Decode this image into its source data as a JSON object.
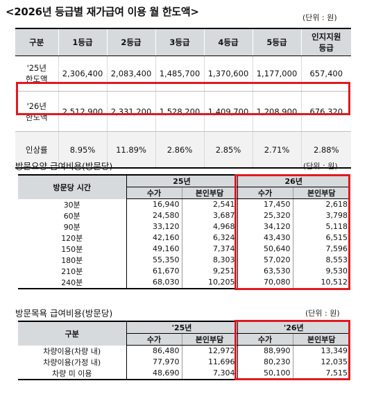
{
  "title": "<2026년 등급별 재가급여 이용 월 한도액>",
  "unit_label": "(단위 : 원)",
  "grade_table": {
    "headers": [
      "구분",
      "1등급",
      "2등급",
      "3등급",
      "4등급",
      "5등급",
      "인지지원",
      "등급"
    ],
    "rows": [
      {
        "label_l1": "'25년",
        "label_l2": "한도액",
        "values": [
          "2,306,400",
          "2,083,400",
          "1,485,700",
          "1,370,600",
          "1,177,000",
          "657,400"
        ]
      },
      {
        "label_l1": "'26년",
        "label_l2": "한도액",
        "values": [
          "2,512,900",
          "2,331,200",
          "1,528,200",
          "1,409,700",
          "1,208,900",
          "676,320"
        ]
      },
      {
        "label_l1": "인상률",
        "label_l2": "",
        "values": [
          "8.95%",
          "11.89%",
          "2.86%",
          "2.85%",
          "2.71%",
          "2.88%"
        ]
      }
    ]
  },
  "visit_care": {
    "title": "방문요양 급여비용(방문당)",
    "unit_label": "(단위 : 원)",
    "row_header": "방문당 시간",
    "year_25": "25년",
    "year_26": "26년",
    "col_fee": "수가",
    "col_copay": "본인부담",
    "rows": [
      {
        "label": "30분",
        "v": [
          "16,940",
          "2,541",
          "17,450",
          "2,618"
        ]
      },
      {
        "label": "60분",
        "v": [
          "24,580",
          "3,687",
          "25,320",
          "3,798"
        ]
      },
      {
        "label": "90분",
        "v": [
          "33,120",
          "4,968",
          "34,120",
          "5,118"
        ]
      },
      {
        "label": "120분",
        "v": [
          "42,160",
          "6,324",
          "43,430",
          "6,515"
        ]
      },
      {
        "label": "150분",
        "v": [
          "49,160",
          "7,374",
          "50,640",
          "7,596"
        ]
      },
      {
        "label": "180분",
        "v": [
          "55,350",
          "8,303",
          "57,020",
          "8,553"
        ]
      },
      {
        "label": "210분",
        "v": [
          "61,670",
          "9,251",
          "63,530",
          "9,530"
        ]
      },
      {
        "label": "240분",
        "v": [
          "68,030",
          "10,205",
          "70,080",
          "10,512"
        ]
      }
    ]
  },
  "visit_bath": {
    "title": "방문목욕 급여비용(방문당)",
    "unit_label": "(단위 : 원)",
    "row_header": "구분",
    "year_25": "'25년",
    "year_26": "'26년",
    "col_fee": "수가",
    "col_copay": "본인부담",
    "rows": [
      {
        "label": "차량이용(차량 내)",
        "v": [
          "86,480",
          "12,972",
          "88,990",
          "13,349"
        ]
      },
      {
        "label": "차량이용(가정 내)",
        "v": [
          "77,970",
          "11,696",
          "80,230",
          "12,035"
        ]
      },
      {
        "label": "차량 미 이용",
        "v": [
          "48,690",
          "7,304",
          "50,100",
          "7,515"
        ]
      }
    ]
  },
  "colors": {
    "highlight": "#e0191f",
    "header_bg": "#d7dadd",
    "rate_row_bg": "#f2f2f2"
  }
}
